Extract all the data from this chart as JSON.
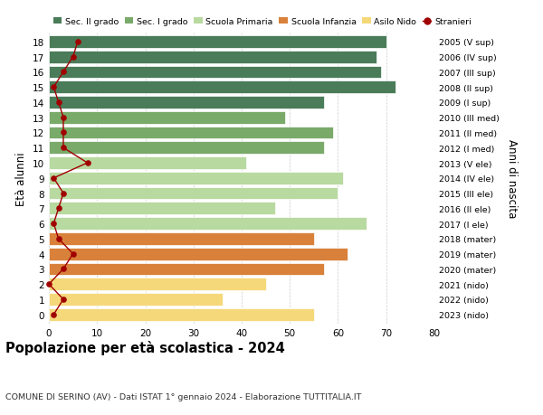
{
  "ages": [
    18,
    17,
    16,
    15,
    14,
    13,
    12,
    11,
    10,
    9,
    8,
    7,
    6,
    5,
    4,
    3,
    2,
    1,
    0
  ],
  "right_labels": [
    "2005 (V sup)",
    "2006 (IV sup)",
    "2007 (III sup)",
    "2008 (II sup)",
    "2009 (I sup)",
    "2010 (III med)",
    "2011 (II med)",
    "2012 (I med)",
    "2013 (V ele)",
    "2014 (IV ele)",
    "2015 (III ele)",
    "2016 (II ele)",
    "2017 (I ele)",
    "2018 (mater)",
    "2019 (mater)",
    "2020 (mater)",
    "2021 (nido)",
    "2022 (nido)",
    "2023 (nido)"
  ],
  "bar_values": [
    70,
    68,
    69,
    72,
    57,
    49,
    59,
    57,
    41,
    61,
    60,
    47,
    66,
    55,
    62,
    57,
    45,
    36,
    55
  ],
  "bar_colors": [
    "#4a7c59",
    "#4a7c59",
    "#4a7c59",
    "#4a7c59",
    "#4a7c59",
    "#7aaa6a",
    "#7aaa6a",
    "#7aaa6a",
    "#b8d9a0",
    "#b8d9a0",
    "#b8d9a0",
    "#b8d9a0",
    "#b8d9a0",
    "#d9813a",
    "#d9813a",
    "#d9813a",
    "#f5d87a",
    "#f5d87a",
    "#f5d87a"
  ],
  "stranieri_values": [
    6,
    5,
    3,
    1,
    2,
    3,
    3,
    3,
    8,
    1,
    3,
    2,
    1,
    2,
    5,
    3,
    0,
    3,
    1
  ],
  "stranieri_color": "#a00000",
  "legend_labels": [
    "Sec. II grado",
    "Sec. I grado",
    "Scuola Primaria",
    "Scuola Infanzia",
    "Asilo Nido",
    "Stranieri"
  ],
  "legend_colors": [
    "#4a7c59",
    "#7aaa6a",
    "#b8d9a0",
    "#d9813a",
    "#f5d87a",
    "#a00000"
  ],
  "title": "Popolazione per età scolastica - 2024",
  "subtitle": "COMUNE DI SERINO (AV) - Dati ISTAT 1° gennaio 2024 - Elaborazione TUTTITALIA.IT",
  "ylabel_left": "Età alunni",
  "ylabel_right": "Anni di nascita",
  "xlim": [
    0,
    80
  ],
  "xticks": [
    0,
    10,
    20,
    30,
    40,
    50,
    60,
    70,
    80
  ],
  "background_color": "#ffffff",
  "bar_height": 0.82
}
